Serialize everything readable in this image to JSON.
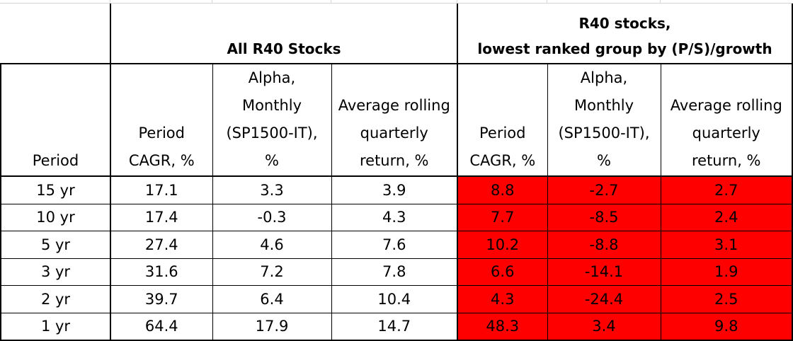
{
  "group_headers": {
    "all": "All R40 Stocks",
    "lowest_line1": "R40 stocks,",
    "lowest_line2": "lowest ranked group by (P/S)/growth"
  },
  "column_headers": {
    "period": "Period",
    "cagr_line1": "Period",
    "cagr_line2": "CAGR, %",
    "alpha_line1": "Alpha,",
    "alpha_line2": "Monthly",
    "alpha_line3": "(SP1500-IT),",
    "alpha_line4": "%",
    "rolling_line1": "Average rolling",
    "rolling_line2": "quarterly",
    "rolling_line3": "return, %"
  },
  "rows": [
    {
      "period": "15 yr",
      "all_cagr": "17.1",
      "all_alpha": "3.3",
      "all_rolling": "3.9",
      "low_cagr": "8.8",
      "low_alpha": "-2.7",
      "low_rolling": "2.7"
    },
    {
      "period": "10 yr",
      "all_cagr": "17.4",
      "all_alpha": "-0.3",
      "all_rolling": "4.3",
      "low_cagr": "7.7",
      "low_alpha": "-8.5",
      "low_rolling": "2.4"
    },
    {
      "period": "5 yr",
      "all_cagr": "27.4",
      "all_alpha": "4.6",
      "all_rolling": "7.6",
      "low_cagr": "10.2",
      "low_alpha": "-8.8",
      "low_rolling": "3.1"
    },
    {
      "period": "3 yr",
      "all_cagr": "31.6",
      "all_alpha": "7.2",
      "all_rolling": "7.8",
      "low_cagr": "6.6",
      "low_alpha": "-14.1",
      "low_rolling": "1.9"
    },
    {
      "period": "2 yr",
      "all_cagr": "39.7",
      "all_alpha": "6.4",
      "all_rolling": "10.4",
      "low_cagr": "4.3",
      "low_alpha": "-24.4",
      "low_rolling": "2.5"
    },
    {
      "period": "1 yr",
      "all_cagr": "64.4",
      "all_alpha": "17.9",
      "all_rolling": "14.7",
      "low_cagr": "48.3",
      "low_alpha": "3.4",
      "low_rolling": "9.8"
    }
  ],
  "colors": {
    "highlight": "#ff0000",
    "border": "#000000",
    "gridline": "#d4d4d4"
  }
}
